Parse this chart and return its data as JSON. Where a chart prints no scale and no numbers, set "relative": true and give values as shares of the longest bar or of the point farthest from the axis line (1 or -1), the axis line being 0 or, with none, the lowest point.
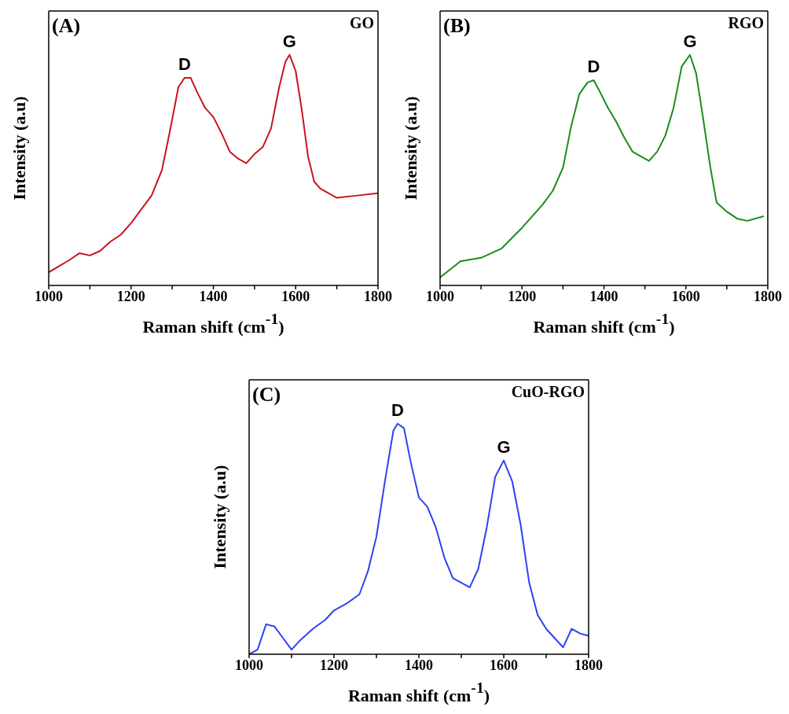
{
  "chart_data": [
    {
      "type": "line",
      "relative": true,
      "xlabel": "Raman shift (cm$^{-1}$)",
      "ylabel": "Intensity (a.u)",
      "xlim": [
        1000,
        1800
      ],
      "xticks": [
        1000,
        {
          "value": 1100,
          "label": null
        },
        1200,
        {
          "value": 1300,
          "label": null
        },
        1400,
        {
          "value": 1500,
          "label": null
        },
        1600,
        {
          "value": 1700,
          "label": null
        },
        1800
      ],
      "grid": false,
      "legend": false,
      "marker": "none",
      "tick_labels": "x",
      "annotations": [
        "(A)",
        "GO",
        {
          "text": "D",
          "x": 1330,
          "y": 0.9
        },
        {
          "text": "G",
          "x": 1585,
          "y": 1.0
        }
      ],
      "series": [
        {
          "color": "#c8141c",
          "x": [
            1000,
            1050,
            1075,
            1100,
            1125,
            1150,
            1175,
            1200,
            1225,
            1250,
            1275,
            1290,
            1300,
            1315,
            1330,
            1345,
            1360,
            1380,
            1400,
            1420,
            1440,
            1460,
            1480,
            1500,
            1520,
            1540,
            1560,
            1575,
            1585,
            1600,
            1615,
            1630,
            1645,
            1660,
            1700,
            1750,
            1800
          ],
          "values": [
            0.057,
            0.11,
            0.14,
            0.13,
            0.15,
            0.19,
            0.22,
            0.27,
            0.33,
            0.39,
            0.5,
            0.63,
            0.72,
            0.86,
            0.9,
            0.9,
            0.84,
            0.77,
            0.73,
            0.66,
            0.58,
            0.55,
            0.53,
            0.57,
            0.6,
            0.68,
            0.86,
            0.97,
            1.0,
            0.93,
            0.76,
            0.56,
            0.45,
            0.42,
            0.38,
            0.39,
            0.4
          ]
        }
      ]
    },
    {
      "type": "line",
      "relative": true,
      "xlabel": "Raman shift (cm$^{-1}$)",
      "ylabel": "Intensity (a.u)",
      "xlim": [
        1000,
        1800
      ],
      "xticks": [
        1000,
        {
          "value": 1100,
          "label": null
        },
        1200,
        {
          "value": 1300,
          "label": null
        },
        1400,
        {
          "value": 1500,
          "label": null
        },
        1600,
        {
          "value": 1700,
          "label": null
        },
        1800
      ],
      "grid": false,
      "legend": false,
      "marker": "none",
      "tick_labels": "x",
      "annotations": [
        "(B)",
        "RGO",
        {
          "text": "D",
          "x": 1375,
          "y": 0.89
        },
        {
          "text": "G",
          "x": 1610,
          "y": 1.0
        }
      ],
      "series": [
        {
          "color": "#1a8c1a",
          "x": [
            1000,
            1025,
            1050,
            1100,
            1150,
            1200,
            1250,
            1275,
            1300,
            1320,
            1340,
            1360,
            1375,
            1390,
            1410,
            1430,
            1450,
            1470,
            1490,
            1510,
            1530,
            1550,
            1570,
            1590,
            1610,
            1625,
            1640,
            1660,
            1675,
            1700,
            1725,
            1750,
            1790
          ],
          "values": [
            0.035,
            0.07,
            0.105,
            0.12,
            0.16,
            0.25,
            0.35,
            0.41,
            0.51,
            0.69,
            0.83,
            0.88,
            0.89,
            0.84,
            0.77,
            0.71,
            0.64,
            0.58,
            0.56,
            0.54,
            0.58,
            0.65,
            0.77,
            0.95,
            1.0,
            0.92,
            0.75,
            0.51,
            0.36,
            0.32,
            0.29,
            0.28,
            0.3
          ]
        }
      ]
    },
    {
      "type": "line",
      "relative": true,
      "xlabel": "Raman shift (cm$^{-1}$)",
      "ylabel": "Intensity (a.u)",
      "xlim": [
        1000,
        1800
      ],
      "xticks": [
        1000,
        {
          "value": 1100,
          "label": null
        },
        1200,
        {
          "value": 1300,
          "label": null
        },
        1400,
        {
          "value": 1500,
          "label": null
        },
        1600,
        {
          "value": 1700,
          "label": null
        },
        1800
      ],
      "grid": false,
      "legend": false,
      "marker": "none",
      "tick_labels": "x",
      "annotations": [
        "(C)",
        "CuO-RGO",
        {
          "text": "D",
          "x": 1350,
          "y": 1.0
        },
        {
          "text": "G",
          "x": 1600,
          "y": 0.84
        }
      ],
      "series": [
        {
          "color": "#2a44f0",
          "x": [
            1000,
            1020,
            1040,
            1060,
            1080,
            1100,
            1120,
            1150,
            1180,
            1200,
            1230,
            1260,
            1280,
            1300,
            1320,
            1340,
            1350,
            1365,
            1380,
            1400,
            1420,
            1440,
            1460,
            1480,
            1500,
            1520,
            1540,
            1560,
            1580,
            1600,
            1620,
            1640,
            1660,
            1680,
            1700,
            1720,
            1740,
            1760,
            1780,
            1800
          ],
          "values": [
            0,
            0.02,
            0.13,
            0.12,
            0.07,
            0.02,
            0.06,
            0.11,
            0.15,
            0.19,
            0.22,
            0.26,
            0.36,
            0.51,
            0.75,
            0.97,
            1.0,
            0.98,
            0.84,
            0.68,
            0.64,
            0.55,
            0.42,
            0.33,
            0.31,
            0.29,
            0.37,
            0.55,
            0.77,
            0.84,
            0.75,
            0.56,
            0.31,
            0.17,
            0.11,
            0.07,
            0.03,
            0.11,
            0.09,
            0.08
          ]
        }
      ]
    }
  ]
}
